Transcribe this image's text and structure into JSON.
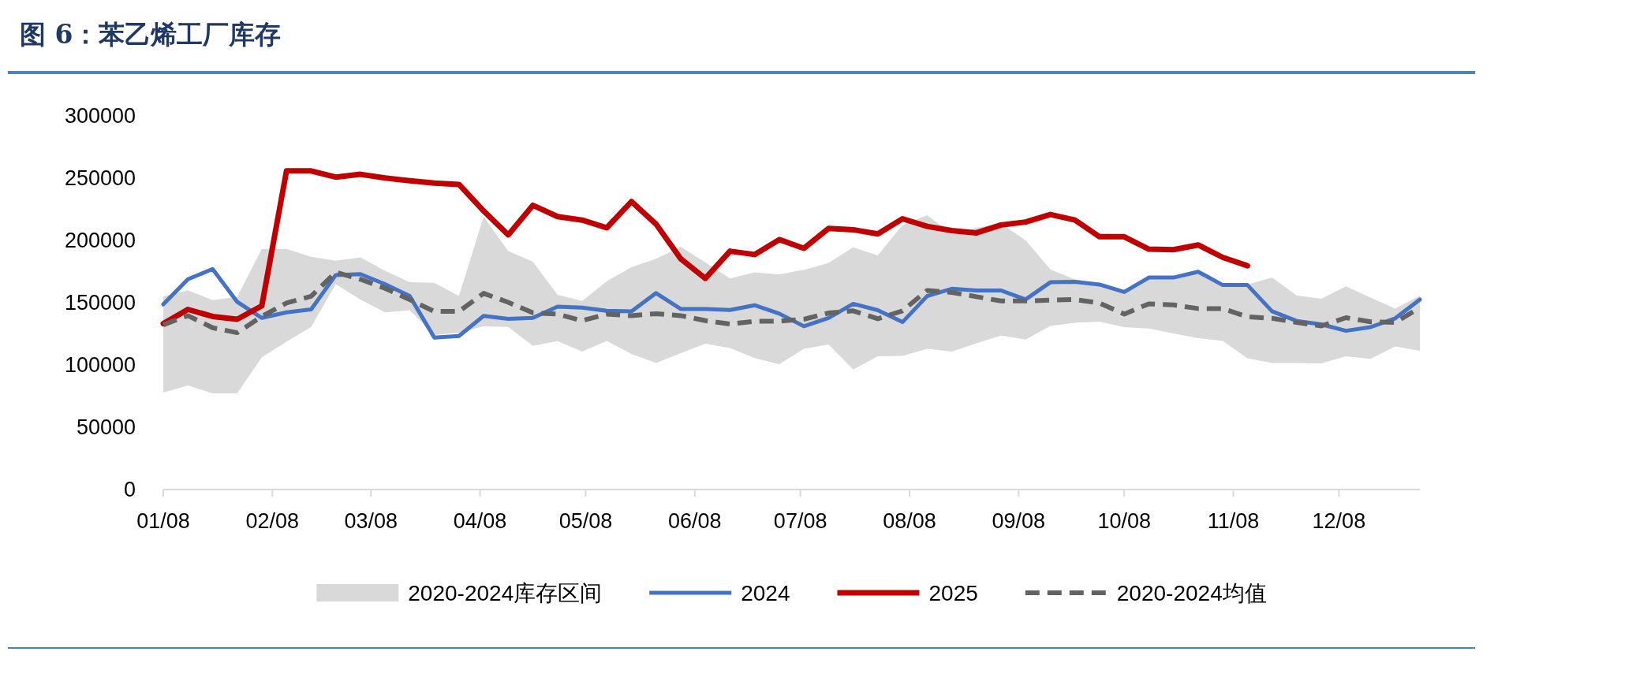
{
  "chart_data": {
    "type": "line",
    "title": "图 6：苯乙烯工厂库存",
    "x": [
      "--01-08",
      "--01-15",
      "--01-22",
      "--01-29",
      "--02-05",
      "--02-12",
      "--02-19",
      "--02-26",
      "--03-05",
      "--03-12",
      "--03-19",
      "--03-26",
      "--04-02",
      "--04-09",
      "--04-16",
      "--04-23",
      "--04-30",
      "--05-07",
      "--05-14",
      "--05-21",
      "--05-28",
      "--06-04",
      "--06-11",
      "--06-18",
      "--06-25",
      "--07-02",
      "--07-09",
      "--07-16",
      "--07-23",
      "--07-30",
      "--08-06",
      "--08-13",
      "--08-20",
      "--08-27",
      "--09-03",
      "--09-10",
      "--09-17",
      "--09-24",
      "--10-01",
      "--10-08",
      "--10-15",
      "--10-22",
      "--10-29",
      "--11-05",
      "--11-12",
      "--11-19",
      "--11-26",
      "--12-03",
      "--12-10",
      "--12-17",
      "--12-24",
      "--12-31"
    ],
    "xlim": [
      "--01-08",
      "--12-31"
    ],
    "xticks": [
      {
        "value": "--01-08",
        "label": "01/08"
      },
      {
        "value": "--02-08",
        "label": "02/08"
      },
      {
        "value": "--03-08",
        "label": "03/08"
      },
      {
        "value": "--04-08",
        "label": "04/08"
      },
      {
        "value": "--05-08",
        "label": "05/08"
      },
      {
        "value": "--06-08",
        "label": "06/08"
      },
      {
        "value": "--07-08",
        "label": "07/08"
      },
      {
        "value": "--08-08",
        "label": "08/08"
      },
      {
        "value": "--09-08",
        "label": "09/08"
      },
      {
        "value": "--10-08",
        "label": "10/08"
      },
      {
        "value": "--11-08",
        "label": "11/08"
      },
      {
        "value": "--12-08",
        "label": "12/08"
      }
    ],
    "ylim": [
      0,
      300000
    ],
    "yticks": [
      0,
      50000,
      100000,
      150000,
      200000,
      250000,
      300000
    ],
    "legend": "bottom",
    "series": [
      {
        "name": "2020-2024库存区间",
        "type": "area",
        "color": "#d9d9d9",
        "upper": [
          155100,
          160000,
          152000,
          154800,
          193200,
          193200,
          186900,
          183700,
          186400,
          175600,
          166500,
          166000,
          155300,
          219200,
          191400,
          183000,
          156400,
          151400,
          167200,
          178500,
          185300,
          195000,
          182300,
          169500,
          174400,
          172800,
          176300,
          181900,
          194400,
          188000,
          212400,
          220300,
          205600,
          210100,
          213500,
          200200,
          176800,
          168600,
          165300,
          159700,
          169700,
          169700,
          174900,
          164200,
          164600,
          170200,
          155900,
          153100,
          163100,
          154200,
          145300,
          155700
        ],
        "lower": [
          77900,
          83600,
          77200,
          77200,
          106200,
          118600,
          130600,
          164900,
          152500,
          142300,
          143900,
          124000,
          126000,
          131100,
          130600,
          115300,
          119100,
          110700,
          119300,
          108900,
          101600,
          109500,
          117000,
          113700,
          105500,
          100600,
          113000,
          116400,
          96300,
          106900,
          107300,
          113000,
          110700,
          117500,
          123600,
          120400,
          131300,
          133800,
          134900,
          130400,
          129300,
          125300,
          121600,
          119300,
          105300,
          101600,
          101600,
          101200,
          106900,
          104900,
          114900,
          111300
        ],
        "values": [
          null,
          null,
          null,
          null,
          null,
          null,
          null,
          null,
          null,
          null,
          null,
          null,
          null,
          null,
          null,
          null,
          null,
          null,
          null,
          null,
          null,
          null,
          null,
          null,
          null,
          null,
          null,
          null,
          null,
          null,
          null,
          null,
          null,
          null,
          null,
          null,
          null,
          null,
          null,
          null,
          null,
          null,
          null,
          null,
          null,
          null,
          null,
          null,
          null,
          null,
          null,
          null
        ]
      },
      {
        "name": "2024",
        "color": "#4472c4",
        "values": [
          148700,
          168800,
          177000,
          150700,
          137800,
          142300,
          144600,
          172200,
          173000,
          164900,
          155300,
          122000,
          123200,
          139400,
          137100,
          137800,
          146900,
          146000,
          143500,
          143000,
          157700,
          145000,
          145000,
          144200,
          148000,
          141200,
          131100,
          137800,
          149100,
          144000,
          134400,
          155300,
          161200,
          159800,
          159800,
          152600,
          166400,
          166800,
          164600,
          158600,
          170200,
          170200,
          174900,
          164200,
          164200,
          143100,
          135300,
          132600,
          127500,
          130400,
          137500,
          152600
        ]
      },
      {
        "name": "2025",
        "color": "#c00000",
        "values": [
          133200,
          144600,
          139000,
          136700,
          147500,
          255800,
          255800,
          250800,
          253100,
          250200,
          248000,
          246000,
          245000,
          223700,
          204500,
          228200,
          219200,
          216300,
          210100,
          231200,
          213100,
          185300,
          169500,
          191400,
          188700,
          200700,
          193700,
          209700,
          208600,
          205200,
          217400,
          211300,
          207900,
          206100,
          212400,
          214800,
          220800,
          216400,
          203000,
          203000,
          193000,
          192600,
          196400,
          186400,
          179700,
          null,
          null,
          null,
          null,
          null,
          null,
          null
        ]
      },
      {
        "name": "2020-2024均值",
        "color": "#636363",
        "line_style": "dashed",
        "values": [
          132200,
          139600,
          129900,
          125900,
          139000,
          149800,
          155200,
          174500,
          168800,
          161600,
          152500,
          143000,
          143000,
          157500,
          150300,
          141900,
          140800,
          135600,
          140800,
          139600,
          141200,
          139600,
          135600,
          132900,
          135100,
          135100,
          136700,
          141700,
          143500,
          137100,
          143500,
          159800,
          158200,
          154800,
          151400,
          151400,
          152000,
          152600,
          149700,
          140900,
          149100,
          148200,
          145300,
          145300,
          138700,
          137500,
          134200,
          131300,
          138000,
          134700,
          134200,
          146000
        ]
      }
    ]
  }
}
